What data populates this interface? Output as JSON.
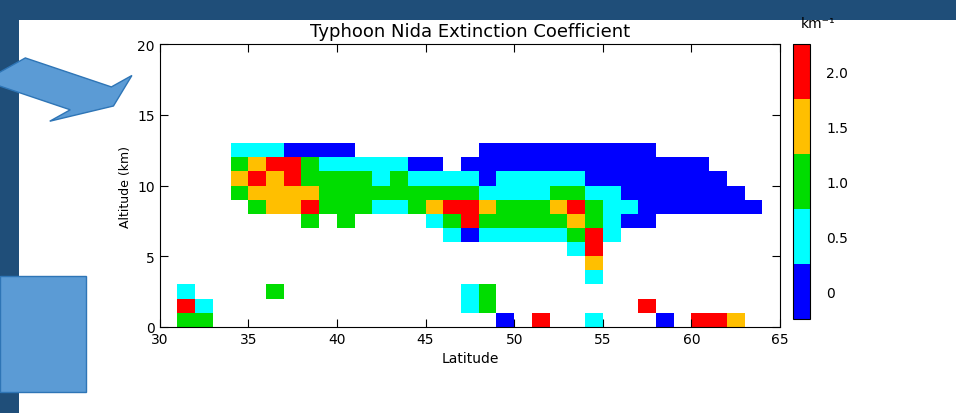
{
  "chart_data": {
    "type": "heatmap",
    "title": "Typhoon Nida Extinction Coefficient",
    "x_label": "Latitude",
    "y_label": "Altitude (km)",
    "xlim": [
      30,
      65
    ],
    "xticks": [
      30,
      35,
      40,
      45,
      50,
      55,
      60,
      65
    ],
    "ylim": [
      0,
      20
    ],
    "yticks": [
      0,
      5,
      10,
      15,
      20
    ],
    "x_edges": [
      30,
      31,
      32,
      33,
      34,
      35,
      36,
      37,
      38,
      39,
      40,
      41,
      42,
      43,
      44,
      45,
      46,
      47,
      48,
      49,
      50,
      51,
      52,
      53,
      54,
      55,
      56,
      57,
      58,
      59,
      60,
      61,
      62,
      63,
      64,
      65
    ],
    "y_edges": [
      0,
      1,
      2,
      3,
      4,
      5,
      6,
      7,
      8,
      9,
      10,
      11,
      12,
      13
    ],
    "cells": [
      [
        null,
        1.2,
        0.8,
        null,
        null,
        null,
        null,
        null,
        null,
        null,
        null,
        null,
        null,
        null,
        null,
        null,
        null,
        null,
        null,
        0.2,
        null,
        2.1,
        null,
        null,
        0.3,
        null,
        null,
        null,
        0.1,
        null,
        2.1,
        2.1,
        1.6,
        null,
        null
      ],
      [
        null,
        1.8,
        0.4,
        null,
        null,
        null,
        null,
        null,
        null,
        null,
        null,
        null,
        null,
        null,
        null,
        null,
        null,
        0.7,
        1.2,
        null,
        null,
        null,
        null,
        null,
        null,
        null,
        null,
        2.1,
        null,
        null,
        null,
        null,
        null,
        null,
        null
      ],
      [
        null,
        0.3,
        null,
        null,
        null,
        null,
        1.0,
        null,
        null,
        null,
        null,
        null,
        null,
        null,
        null,
        null,
        null,
        0.5,
        1.0,
        null,
        null,
        null,
        null,
        null,
        null,
        null,
        null,
        null,
        null,
        null,
        null,
        null,
        null,
        null,
        null
      ],
      [
        null,
        null,
        null,
        null,
        null,
        null,
        null,
        null,
        null,
        null,
        null,
        null,
        null,
        null,
        null,
        null,
        null,
        null,
        null,
        null,
        null,
        null,
        null,
        null,
        0.4,
        null,
        null,
        null,
        null,
        null,
        null,
        null,
        null,
        null,
        null
      ],
      [
        null,
        null,
        null,
        null,
        null,
        null,
        null,
        null,
        null,
        null,
        null,
        null,
        null,
        null,
        null,
        null,
        null,
        null,
        null,
        null,
        null,
        null,
        null,
        null,
        1.3,
        null,
        null,
        null,
        null,
        null,
        null,
        null,
        null,
        null,
        null
      ],
      [
        null,
        null,
        null,
        null,
        null,
        null,
        null,
        null,
        null,
        null,
        null,
        null,
        null,
        null,
        null,
        null,
        null,
        null,
        null,
        null,
        null,
        null,
        null,
        0.3,
        2.1,
        null,
        null,
        null,
        null,
        null,
        null,
        null,
        null,
        null,
        null
      ],
      [
        null,
        null,
        null,
        null,
        null,
        null,
        null,
        null,
        null,
        null,
        null,
        null,
        null,
        null,
        null,
        null,
        0.3,
        0.1,
        0.6,
        0.4,
        0.3,
        0.5,
        0.4,
        1.0,
        1.8,
        0.3,
        null,
        null,
        null,
        null,
        null,
        null,
        null,
        null,
        null
      ],
      [
        null,
        null,
        null,
        null,
        null,
        null,
        null,
        null,
        1.2,
        null,
        0.8,
        null,
        null,
        null,
        null,
        0.4,
        1.0,
        2.1,
        1.2,
        0.9,
        0.8,
        1.1,
        0.9,
        1.6,
        1.2,
        0.4,
        0.2,
        0.1,
        null,
        null,
        null,
        null,
        null,
        null,
        null
      ],
      [
        null,
        null,
        null,
        null,
        null,
        1.0,
        1.4,
        1.6,
        1.8,
        1.2,
        1.0,
        0.9,
        0.7,
        0.6,
        0.8,
        1.4,
        2.0,
        1.8,
        1.4,
        1.1,
        0.8,
        1.0,
        1.3,
        1.9,
        1.0,
        0.4,
        0.3,
        0.2,
        0.2,
        0.1,
        0.1,
        0.1,
        0.2,
        0.1,
        null
      ],
      [
        null,
        null,
        null,
        null,
        0.8,
        1.3,
        1.5,
        1.7,
        1.4,
        1.1,
        0.9,
        1.0,
        0.8,
        0.9,
        1.0,
        0.8,
        1.1,
        0.9,
        0.5,
        0.7,
        0.6,
        0.7,
        0.8,
        1.2,
        0.6,
        0.3,
        0.2,
        0.2,
        0.2,
        0.1,
        0.1,
        0.1,
        0.1,
        null,
        null
      ],
      [
        null,
        null,
        null,
        null,
        1.6,
        1.9,
        1.5,
        1.8,
        1.2,
        0.9,
        0.8,
        0.9,
        0.7,
        0.8,
        0.7,
        0.5,
        0.6,
        0.3,
        0.2,
        0.3,
        0.3,
        0.3,
        0.4,
        0.3,
        0.2,
        0.2,
        0.1,
        0.2,
        0.1,
        0.1,
        0.1,
        0.1,
        null,
        null,
        null
      ],
      [
        null,
        null,
        null,
        null,
        1.2,
        1.4,
        1.9,
        2.1,
        1.0,
        0.6,
        0.5,
        0.6,
        0.4,
        0.3,
        0.2,
        0.1,
        null,
        0.1,
        0.1,
        0.1,
        0.2,
        0.1,
        0.2,
        0.1,
        0.2,
        0.1,
        0.1,
        0.1,
        0.1,
        0.1,
        0.1,
        null,
        null,
        null,
        null
      ],
      [
        null,
        null,
        null,
        null,
        0.4,
        0.6,
        0.3,
        0.2,
        0.1,
        0.1,
        0.1,
        null,
        null,
        null,
        null,
        null,
        null,
        null,
        0.1,
        0.1,
        0.1,
        0.1,
        0.1,
        0.1,
        0.1,
        0.1,
        0.1,
        0.1,
        null,
        null,
        null,
        null,
        null,
        null,
        null
      ]
    ],
    "colorbar": {
      "label": "km⁻¹",
      "range": [
        -0.25,
        2.25
      ],
      "boundaries": [
        -0.25,
        0.25,
        0.75,
        1.25,
        1.75,
        2.25
      ],
      "colors": [
        "#0000ff",
        "#00ffff",
        "#00dd00",
        "#ffbf00",
        "#ff0000"
      ],
      "ticks": [
        0,
        0.5,
        {
          "value": 1.0,
          "label": "1.0"
        },
        1.5,
        {
          "value": 2.0,
          "label": "2.0"
        }
      ]
    }
  }
}
